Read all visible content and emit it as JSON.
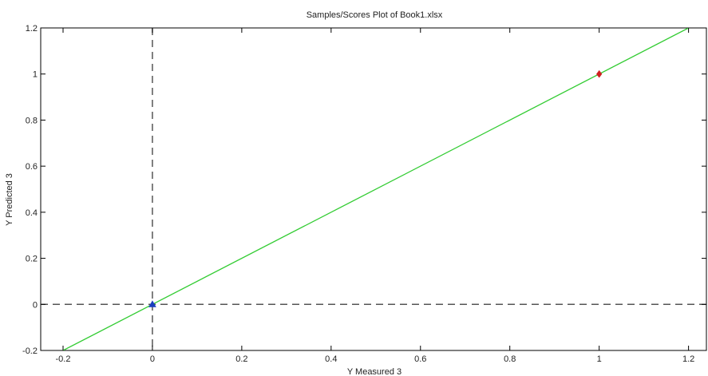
{
  "chart_data": {
    "type": "scatter",
    "title": "Samples/Scores Plot of Book1.xlsx",
    "xlabel": "Y Measured 3",
    "ylabel": "Y Predicted 3",
    "xlim": [
      -0.25,
      1.24
    ],
    "ylim": [
      -0.2,
      1.2
    ],
    "xticks": [
      -0.2,
      0,
      0.2,
      0.4,
      0.6,
      0.8,
      1,
      1.2
    ],
    "xtick_labels": [
      "-0.2",
      "0",
      "0.2",
      "0.4",
      "0.6",
      "0.8",
      "1",
      "1.2"
    ],
    "yticks": [
      -0.2,
      0,
      0.2,
      0.4,
      0.6,
      0.8,
      1,
      1.2
    ],
    "ytick_labels": [
      "-0.2",
      "0",
      "0.2",
      "0.4",
      "0.6",
      "0.8",
      "1",
      "1.2"
    ],
    "grid": false,
    "legend": "none",
    "reference_lines": [
      {
        "orientation": "vertical",
        "x": 0,
        "style": "dashed",
        "color": "#555555"
      },
      {
        "orientation": "horizontal",
        "y": 0,
        "style": "dashed",
        "color": "#555555"
      }
    ],
    "fit_line": {
      "from": [
        -0.2,
        -0.2
      ],
      "to": [
        1.2,
        1.2
      ],
      "color": "#33cc33"
    },
    "points": [
      {
        "x": 0,
        "y": 0,
        "marker": "triangle",
        "color": "#1a3fbf"
      },
      {
        "x": 1,
        "y": 1,
        "marker": "diamond",
        "color": "#d02020"
      }
    ]
  }
}
